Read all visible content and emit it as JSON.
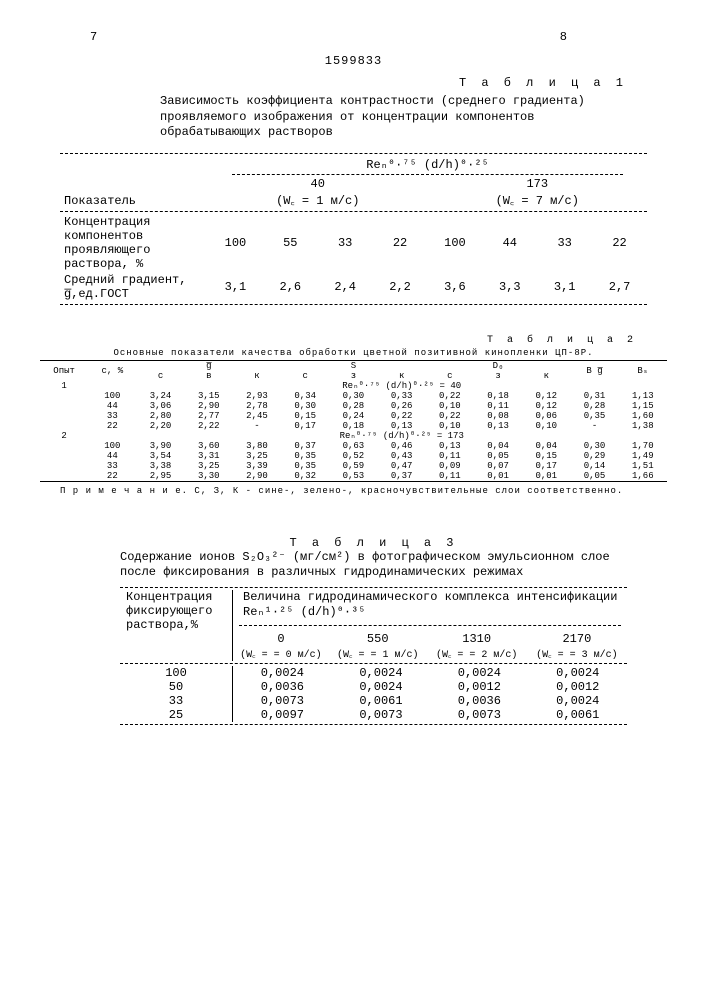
{
  "page_left": "7",
  "page_right": "8",
  "doc_number": "1599833",
  "table1": {
    "label": "Т а б л и ц а 1",
    "caption": "Зависимость коэффициента контрастности (среднего градиента) проявляемого изображения от концентрации компонентов обрабатывающих растворов",
    "header_left": "Показатель",
    "header_formula": "Reₙ⁰·⁷⁵ (d/h)⁰·²⁵",
    "col_group1": "40",
    "col_group1_sub": "(W꜀ = 1 м/с)",
    "col_group2": "173",
    "col_group2_sub": "(W꜀ = 7 м/с)",
    "row1_label": "Концентрация компонентов проявляющего раствора, %",
    "row1": [
      "100",
      "55",
      "33",
      "22",
      "100",
      "44",
      "33",
      "22"
    ],
    "row2_label": "Средний градиент, g̅,ед.ГОСТ",
    "row2": [
      "3,1",
      "2,6",
      "2,4",
      "2,2",
      "3,6",
      "3,3",
      "3,1",
      "2,7"
    ]
  },
  "table2": {
    "label": "Т а б л и ц а 2",
    "caption": "Основные показатели качества обработки цветной позитивной кинопленки ЦП-8Р.",
    "head_opyt": "Опыт",
    "head_c": "с, %",
    "head_g": "g̅",
    "head_s": "S",
    "head_d": "D₀",
    "head_bg": "B g̅",
    "head_bs": "Bₛ",
    "sub_cols": [
      "с",
      "в",
      "к",
      "с",
      "з",
      "к",
      "с",
      "з",
      "к"
    ],
    "group1_header": "Reₙ⁰·⁷⁵ (d/h)⁰·²⁵ = 40",
    "group1": {
      "opyt": "1",
      "rows": [
        {
          "c": "100",
          "g": [
            "3,24",
            "3,15",
            "2,93"
          ],
          "s": [
            "0,34",
            "0,30",
            "0,33"
          ],
          "d": [
            "0,22",
            "0,18",
            "0,12"
          ],
          "bg": "0,31",
          "bs": "1,13"
        },
        {
          "c": "44",
          "g": [
            "3,06",
            "2,90",
            "2,78"
          ],
          "s": [
            "0,30",
            "0,28",
            "0,26"
          ],
          "d": [
            "0,10",
            "0,11",
            "0,12"
          ],
          "bg": "0,28",
          "bs": "1,15"
        },
        {
          "c": "33",
          "g": [
            "2,80",
            "2,77",
            "2,45"
          ],
          "s": [
            "0,15",
            "0,24",
            "0,22"
          ],
          "d": [
            "0,22",
            "0,08",
            "0,06"
          ],
          "bg": "0,35",
          "bs": "1,60"
        },
        {
          "c": "22",
          "g": [
            "2,20",
            "2,22",
            "-"
          ],
          "s": [
            "0,17",
            "0,18",
            "0,13"
          ],
          "d": [
            "0,10",
            "0,13",
            "0,10"
          ],
          "bg": "-",
          "bs": "1,38"
        }
      ]
    },
    "group2_header": "Reₙ⁰·⁷⁵ (d/h)⁰·²⁵ = 173",
    "group2": {
      "opyt": "2",
      "rows": [
        {
          "c": "100",
          "g": [
            "3,90",
            "3,60",
            "3,80"
          ],
          "s": [
            "0,37",
            "0,63",
            "0,46"
          ],
          "d": [
            "0,13",
            "0,04",
            "0,04"
          ],
          "bg": "0,30",
          "bs": "1,70"
        },
        {
          "c": "44",
          "g": [
            "3,54",
            "3,31",
            "3,25"
          ],
          "s": [
            "0,35",
            "0,52",
            "0,43"
          ],
          "d": [
            "0,11",
            "0,05",
            "0,15"
          ],
          "bg": "0,29",
          "bs": "1,49"
        },
        {
          "c": "33",
          "g": [
            "3,38",
            "3,25",
            "3,39"
          ],
          "s": [
            "0,35",
            "0,59",
            "0,47"
          ],
          "d": [
            "0,09",
            "0,07",
            "0,17"
          ],
          "bg": "0,14",
          "bs": "1,51"
        },
        {
          "c": "22",
          "g": [
            "2,95",
            "3,30",
            "2,90"
          ],
          "s": [
            "0,32",
            "0,53",
            "0,37"
          ],
          "d": [
            "0,11",
            "0,01",
            "0,01"
          ],
          "bg": "0,05",
          "bs": "1,66"
        }
      ]
    },
    "note": "П р и м е ч а н и е. С, З, К - сине-, зелено-, красночувствительные слои соответственно."
  },
  "table3": {
    "label": "Т а б л и ц а 3",
    "caption": "Содержание ионов S₂O₃²⁻ (мг/см²) в фотографическом эмульсионном слое после фиксирования в различных гидродинамических режимах",
    "col1_label": "Концентрация фиксирующего раствора,%",
    "col2_header": "Величина гидродинамического комплекса интенсификации Reₙ¹·²⁵ (d/h)⁰·³⁵",
    "cols": [
      {
        "v": "0",
        "w": "(W꜀ = = 0 м/с)"
      },
      {
        "v": "550",
        "w": "(W꜀ = = 1 м/с)"
      },
      {
        "v": "1310",
        "w": "(W꜀ = = 2 м/с)"
      },
      {
        "v": "2170",
        "w": "(W꜀ = = 3 м/с)"
      }
    ],
    "rows": [
      {
        "c": "100",
        "v": [
          "0,0024",
          "0,0024",
          "0,0024",
          "0,0024"
        ]
      },
      {
        "c": "50",
        "v": [
          "0,0036",
          "0,0024",
          "0,0012",
          "0,0012"
        ]
      },
      {
        "c": "33",
        "v": [
          "0,0073",
          "0,0061",
          "0,0036",
          "0,0024"
        ]
      },
      {
        "c": "25",
        "v": [
          "0,0097",
          "0,0073",
          "0,0073",
          "0,0061"
        ]
      }
    ]
  }
}
